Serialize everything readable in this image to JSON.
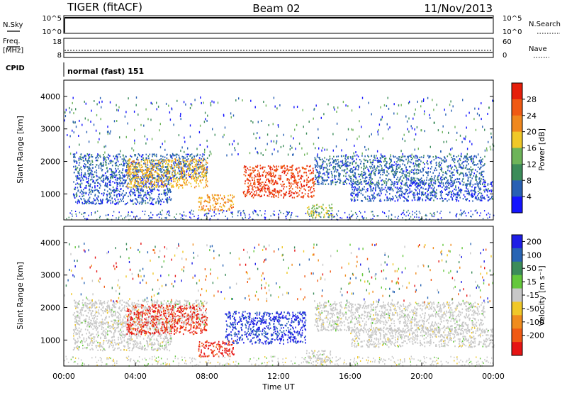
{
  "header": {
    "site": "TIGER (fitACF)",
    "beam": "Beam 02",
    "date": "11/Nov/2013"
  },
  "aux_panels": {
    "noise": {
      "left_label": "N.Sky",
      "right_label": "N.Search",
      "left_ticks": [
        "10^5",
        "10^0"
      ],
      "right_ticks": [
        "10^5",
        "10^0"
      ]
    },
    "frequency": {
      "left_label_1": "Freq.",
      "left_label_2": "[MHz]",
      "right_label": "Nave",
      "left_ticks": [
        "18",
        "8"
      ],
      "right_ticks": [
        "60",
        "0"
      ]
    },
    "cpid": {
      "label": "CPID",
      "value": "normal (fast) 151"
    }
  },
  "colors": {
    "power_scale": [
      "#1414ff",
      "#2860b4",
      "#3c8c5a",
      "#6eb45a",
      "#f0c828",
      "#f0881e",
      "#f05a14",
      "#e61e0a"
    ],
    "velocity_scale": [
      "#1e1ee6",
      "#2864b4",
      "#3c8c5a",
      "#64c83c",
      "#c8c8c8",
      "#f0c828",
      "#f08c1e",
      "#f05a14",
      "#e61414"
    ]
  },
  "chart_data": [
    {
      "type": "heatmap",
      "title": "",
      "xlabel": "Time UT",
      "ylabel": "Slant Range [km]",
      "xticks": [
        "00:00",
        "04:00",
        "08:00",
        "12:00",
        "16:00",
        "20:00",
        "00:00"
      ],
      "yticks": [
        "1000",
        "2000",
        "3000",
        "4000"
      ],
      "xlim": [
        0,
        24
      ],
      "ylim": [
        200,
        4500
      ],
      "colorbar": {
        "label": "Power [dB]",
        "ticks": [
          "4",
          "8",
          "12",
          "16",
          "20",
          "24",
          "28"
        ],
        "range": [
          0,
          30
        ]
      },
      "regions": [
        {
          "t": [
            0.5,
            8.0
          ],
          "range_km": [
            1500,
            2250
          ],
          "value_db": 6
        },
        {
          "t": [
            0.5,
            6.0
          ],
          "range_km": [
            700,
            1600
          ],
          "value_db": 5
        },
        {
          "t": [
            3.5,
            8.0
          ],
          "range_km": [
            1200,
            2100
          ],
          "value_db": 18
        },
        {
          "t": [
            7.5,
            9.5
          ],
          "range_km": [
            500,
            1000
          ],
          "value_db": 20
        },
        {
          "t": [
            10.0,
            14.0
          ],
          "range_km": [
            900,
            1900
          ],
          "value_db": 26
        },
        {
          "t": [
            13.5,
            15.0
          ],
          "range_km": [
            300,
            700
          ],
          "value_db": 14
        },
        {
          "t": [
            14.0,
            23.5
          ],
          "range_km": [
            1300,
            2200
          ],
          "value_db": 6
        },
        {
          "t": [
            16.0,
            24.0
          ],
          "range_km": [
            800,
            1400
          ],
          "value_db": 5
        }
      ]
    },
    {
      "type": "heatmap",
      "title": "",
      "xlabel": "Time UT",
      "ylabel": "Slant Range [km]",
      "xticks": [
        "00:00",
        "04:00",
        "08:00",
        "12:00",
        "16:00",
        "20:00",
        "00:00"
      ],
      "yticks": [
        "1000",
        "2000",
        "3000",
        "4000"
      ],
      "xlim": [
        0,
        24
      ],
      "ylim": [
        200,
        4500
      ],
      "colorbar": {
        "label": "Velocity [m s⁻¹]",
        "ticks": [
          "200",
          "100",
          "50",
          "15",
          "-15",
          "-50",
          "-100",
          "-200"
        ],
        "range": [
          -250,
          250
        ]
      },
      "regions": [
        {
          "t": [
            0.5,
            8.0
          ],
          "range_km": [
            1500,
            2250
          ],
          "value_ms": 0
        },
        {
          "t": [
            0.5,
            6.0
          ],
          "range_km": [
            700,
            1600
          ],
          "value_ms": 0
        },
        {
          "t": [
            3.5,
            8.0
          ],
          "range_km": [
            1200,
            2100
          ],
          "value_ms": -200
        },
        {
          "t": [
            7.5,
            9.5
          ],
          "range_km": [
            500,
            1000
          ],
          "value_ms": -200
        },
        {
          "t": [
            9.0,
            13.5
          ],
          "range_km": [
            900,
            1900
          ],
          "value_ms": 200
        },
        {
          "t": [
            13.5,
            15.0
          ],
          "range_km": [
            300,
            700
          ],
          "value_ms": 0
        },
        {
          "t": [
            14.0,
            23.5
          ],
          "range_km": [
            1300,
            2200
          ],
          "value_ms": 0
        },
        {
          "t": [
            16.0,
            24.0
          ],
          "range_km": [
            800,
            1400
          ],
          "value_ms": 0
        }
      ]
    }
  ]
}
